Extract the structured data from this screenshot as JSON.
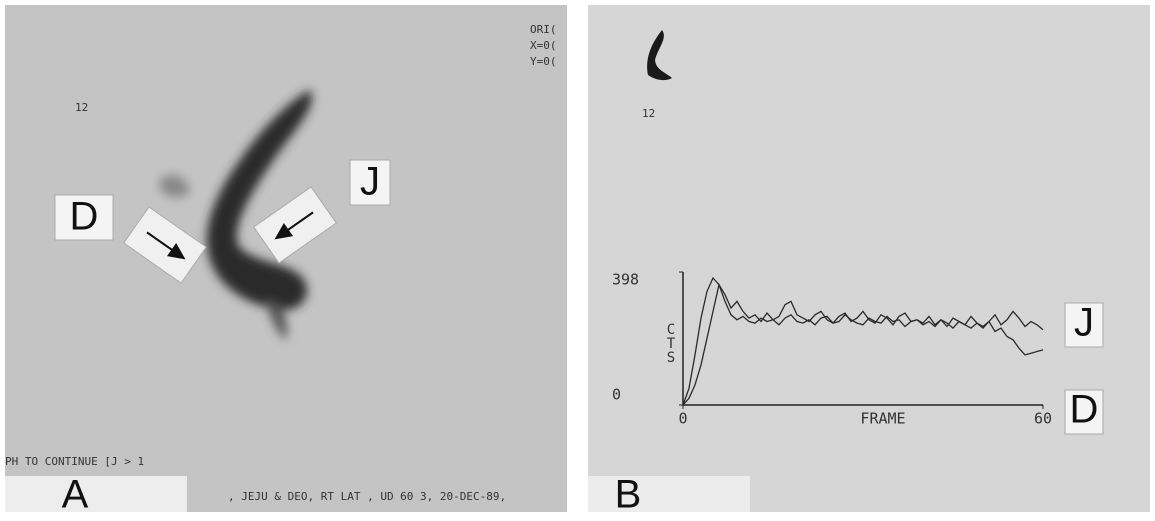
{
  "panel_a": {
    "corner_text": [
      "ORI(",
      "X=0(",
      "Y=0("
    ],
    "frame_number": "12",
    "label_d": "D",
    "label_j": "J",
    "prompt": "PH TO CONTINUE [J > 1",
    "footer": ", JEJU & DEO, RT LAT , UD  60 3, 20-DEC-89,",
    "letter": "A"
  },
  "panel_b": {
    "frame_number": "12",
    "letter": "B"
  },
  "chart_data": {
    "type": "line",
    "x_label": "FRAME",
    "y_label": "CTS",
    "x": [
      0,
      1,
      2,
      3,
      4,
      5,
      6,
      7,
      8,
      9,
      10,
      11,
      12,
      13,
      14,
      15,
      16,
      17,
      18,
      19,
      20,
      21,
      22,
      23,
      24,
      25,
      26,
      27,
      28,
      29,
      30,
      31,
      32,
      33,
      34,
      35,
      36,
      37,
      38,
      39,
      40,
      41,
      42,
      43,
      44,
      45,
      46,
      47,
      48,
      49,
      50,
      51,
      52,
      53,
      54,
      55,
      56,
      57,
      58,
      59,
      60
    ],
    "series": [
      {
        "name": "J",
        "color": "#2a2a2a",
        "values": [
          0,
          20,
          60,
          120,
          200,
          280,
          360,
          330,
          290,
          310,
          280,
          260,
          270,
          250,
          275,
          255,
          265,
          300,
          310,
          270,
          260,
          250,
          270,
          280,
          255,
          245,
          265,
          275,
          250,
          260,
          280,
          255,
          245,
          270,
          260,
          240,
          265,
          275,
          250,
          255,
          245,
          265,
          240,
          255,
          235,
          260,
          250,
          240,
          265,
          245,
          230,
          250,
          270,
          240,
          255,
          280,
          260,
          235,
          250,
          240,
          225
        ]
      },
      {
        "name": "D",
        "color": "#2a2a2a",
        "values": [
          0,
          50,
          150,
          260,
          340,
          380,
          360,
          310,
          270,
          255,
          265,
          250,
          245,
          260,
          250,
          255,
          240,
          260,
          270,
          250,
          245,
          255,
          240,
          260,
          265,
          245,
          250,
          270,
          255,
          245,
          240,
          260,
          250,
          245,
          265,
          250,
          255,
          235,
          250,
          255,
          240,
          250,
          235,
          255,
          245,
          230,
          250,
          240,
          230,
          245,
          235,
          250,
          220,
          230,
          205,
          195,
          170,
          150,
          155,
          160,
          165
        ]
      }
    ],
    "xlim": [
      0,
      60
    ],
    "xticks": [
      0,
      60
    ],
    "ylim": [
      0,
      398
    ],
    "yticks": [
      0,
      398
    ]
  }
}
